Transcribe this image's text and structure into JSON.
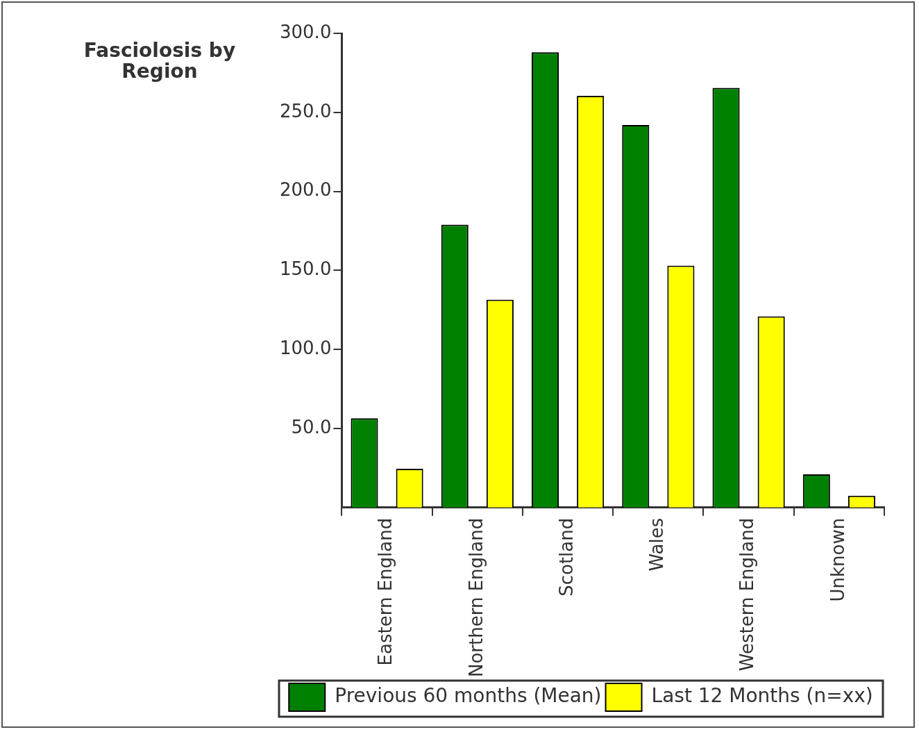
{
  "chart_data": {
    "type": "bar",
    "title": "Fasciolosis by Region",
    "categories": [
      "Eastern England",
      "Northern England",
      "Scotland",
      "Wales",
      "Western England",
      "Unknown"
    ],
    "series": [
      {
        "name": "Previous 60 months (Mean)",
        "color": "#008000",
        "values": [
          56.5,
          179,
          288,
          242,
          265.5,
          21
        ]
      },
      {
        "name": "Last 12 Months (n=xx)",
        "color": "#ffff00",
        "values": [
          24.5,
          131.5,
          260.5,
          153,
          121,
          7.5
        ]
      }
    ],
    "ylim": [
      0,
      300
    ],
    "yticks": [
      {
        "value": 50,
        "label": "50.0"
      },
      {
        "value": 100,
        "label": "100.0"
      },
      {
        "value": 150,
        "label": "150.0"
      },
      {
        "value": 200,
        "label": "200.0"
      },
      {
        "value": 250,
        "label": "250.0"
      },
      {
        "value": 300,
        "label": "300.0"
      }
    ],
    "grid": false,
    "legend": "bottom"
  }
}
